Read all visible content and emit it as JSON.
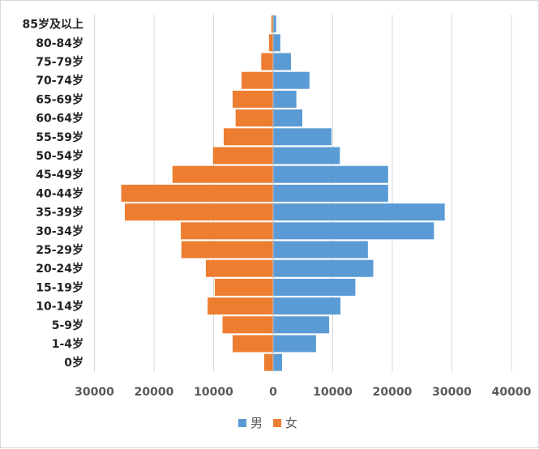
{
  "chart_data": {
    "type": "bar",
    "orientation": "horizontal",
    "subtype": "population-pyramid",
    "categories": [
      "0岁",
      "1-4岁",
      "5-9岁",
      "10-14岁",
      "15-19岁",
      "20-24岁",
      "25-29岁",
      "30-34岁",
      "35-39岁",
      "40-44岁",
      "45-49岁",
      "50-54岁",
      "55-59岁",
      "60-64岁",
      "65-69岁",
      "70-74岁",
      "75-79岁",
      "80-84岁",
      "85岁及以上"
    ],
    "series": [
      {
        "name": "男",
        "color": "#5b9bd5",
        "values": [
          1500,
          7200,
          9400,
          11300,
          13800,
          16800,
          15900,
          27000,
          28800,
          19300,
          19300,
          11200,
          9800,
          4900,
          3900,
          6100,
          3000,
          1200,
          500
        ]
      },
      {
        "name": "女",
        "color": "#ed7d31",
        "values": [
          1500,
          6800,
          8500,
          11000,
          9800,
          11300,
          15400,
          15500,
          24900,
          25500,
          16900,
          10100,
          8300,
          6300,
          6800,
          5300,
          2000,
          700,
          300
        ]
      }
    ],
    "xlim": [
      -40000,
      40000
    ],
    "xticks": [
      -30000,
      -20000,
      -10000,
      0,
      10000,
      20000,
      30000,
      40000
    ],
    "tick_labels": [
      "30000",
      "20000",
      "10000",
      "0",
      "10000",
      "20000",
      "30000",
      "40000"
    ],
    "legend_position": "bottom",
    "grid": "vertical"
  }
}
